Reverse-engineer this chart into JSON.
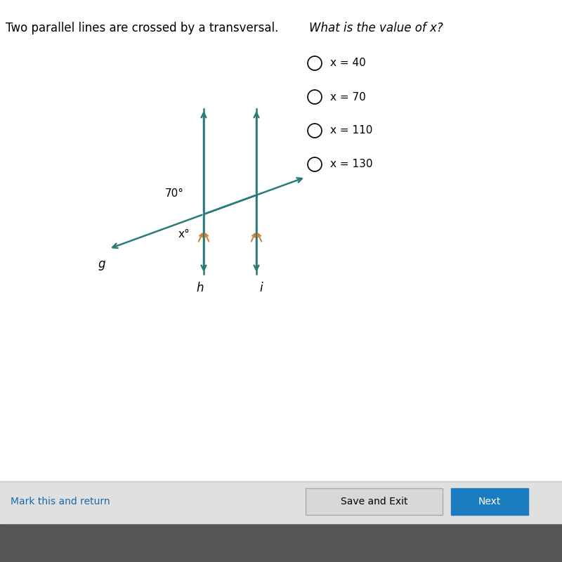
{
  "bg_color": "#e8e8e8",
  "content_bg": "#ffffff",
  "title_text": "Two parallel lines are crossed by a transversal.",
  "question_text": "What is the value of x?",
  "choices": [
    "x = 40",
    "x = 70",
    "x = 110",
    "x = 130"
  ],
  "line_color": "#2a7a7a",
  "tick_color": "#c8843a",
  "angle_70_label": "70°",
  "angle_x_label": "x°",
  "transversal_label": "g",
  "parallel_label_h": "h",
  "parallel_label_i": "i",
  "save_exit_color": "#d8d8d8",
  "next_color": "#1a7bbf",
  "footer_bg": "#555555",
  "link_color": "#1a6aaa"
}
